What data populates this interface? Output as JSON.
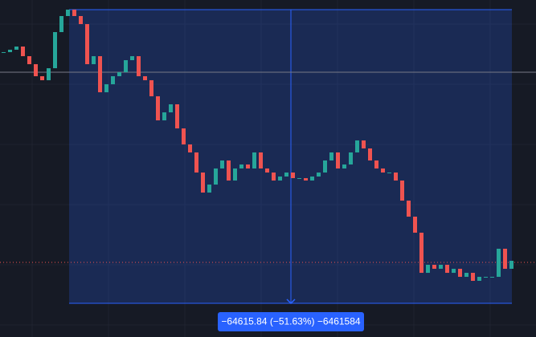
{
  "chart_data": {
    "type": "candlestick",
    "values": [
      115800,
      116330,
      117030,
      114910,
      113150,
      110500,
      109620,
      112260,
      120210,
      123740,
      125150,
      123740,
      121970,
      113150,
      114910,
      106970,
      108730,
      110500,
      111380,
      114030,
      114910,
      110500,
      109620,
      106090,
      100790,
      102550,
      104320,
      99020,
      95490,
      93730,
      89310,
      84900,
      86660,
      90200,
      91960,
      87550,
      90200,
      91080,
      90200,
      93730,
      90200,
      89310,
      87550,
      88430,
      89310,
      88080,
      88080,
      87550,
      88430,
      89310,
      91960,
      93730,
      90200,
      91080,
      93730,
      96370,
      94610,
      91960,
      90200,
      89310,
      89310,
      87550,
      83130,
      79600,
      76070,
      67240,
      69010,
      68130,
      69010,
      67240,
      68130,
      66360,
      67240,
      65480,
      66360,
      66360,
      66360,
      72540,
      68130,
      69890
    ],
    "up_color": "#26a69a",
    "down_color": "#ef5350",
    "ylim": [
      53120,
      127271
    ],
    "grid": true,
    "crosshair_price": 111380,
    "last_price": 69540,
    "measure": {
      "start": 125150,
      "end": 60534,
      "label": "−64615.84 (−51.63%) −6461584"
    }
  }
}
